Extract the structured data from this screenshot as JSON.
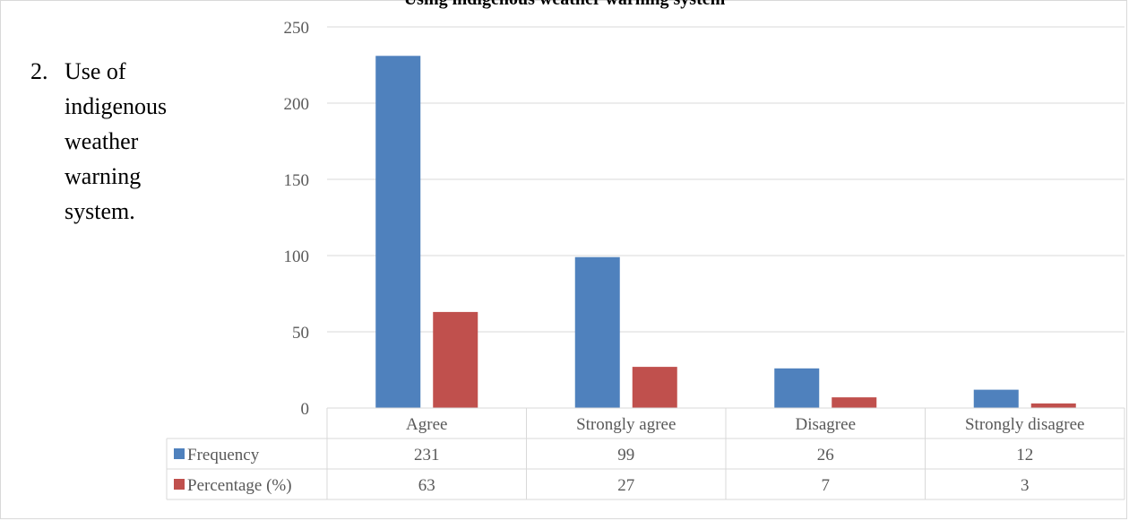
{
  "page": {
    "title": "Using indigenous weather warning system",
    "side_note": {
      "number": "2.",
      "lines": [
        "Use of",
        "indigenous",
        "weather",
        "warning",
        "system."
      ]
    }
  },
  "chart_data": {
    "type": "bar",
    "categories": [
      "Agree",
      "Strongly agree",
      "Disagree",
      "Strongly disagree"
    ],
    "series": [
      {
        "name": "Frequency",
        "values": [
          231,
          99,
          26,
          12
        ],
        "color": "#4f81bd"
      },
      {
        "name": "Percentage (%)",
        "values": [
          63,
          27,
          7,
          3
        ],
        "color": "#c0504d"
      }
    ],
    "ylim": [
      0,
      250
    ],
    "yticks": [
      0,
      50,
      100,
      150,
      200,
      250
    ],
    "grid": true,
    "data_table": true,
    "title": "",
    "xlabel": "",
    "ylabel": ""
  }
}
